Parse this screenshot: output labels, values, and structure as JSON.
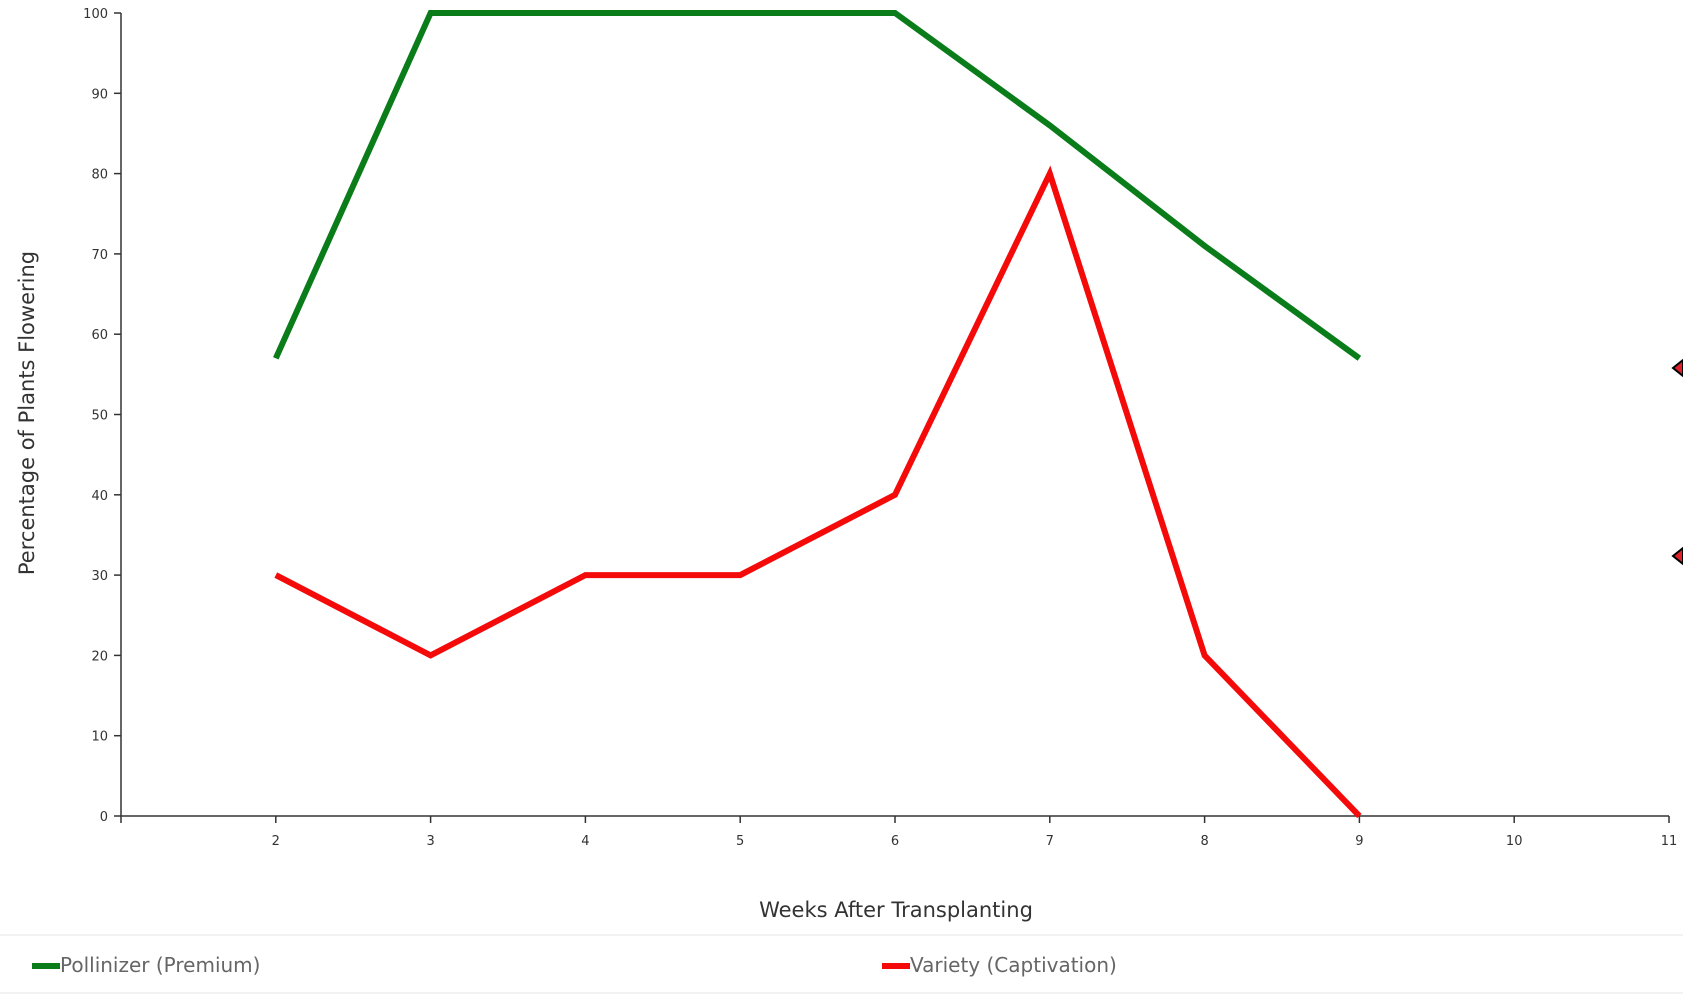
{
  "chart_data": {
    "type": "line",
    "title": "",
    "xlabel": "Weeks After Transplanting",
    "ylabel": "Percentage of Plants Flowering",
    "xlim": [
      1,
      11
    ],
    "ylim": [
      0,
      100
    ],
    "x_ticks": [
      2,
      3,
      4,
      5,
      6,
      7,
      8,
      9,
      10,
      11
    ],
    "y_ticks": [
      0,
      10,
      20,
      30,
      40,
      50,
      60,
      70,
      80,
      90,
      100
    ],
    "grid": false,
    "legend_position": "bottom",
    "series": [
      {
        "name": "Pollinizer (Premium)",
        "color": "#0a7d1a",
        "x": [
          2,
          3,
          4,
          5,
          6,
          7,
          8,
          9
        ],
        "values": [
          57,
          100,
          100,
          100,
          100,
          86,
          71,
          57
        ]
      },
      {
        "name": "Variety (Captivation)",
        "color": "#f50a0a",
        "x": [
          2,
          3,
          4,
          5,
          6,
          7,
          8,
          9
        ],
        "values": [
          30,
          20,
          30,
          30,
          40,
          80,
          20,
          0
        ]
      }
    ]
  }
}
